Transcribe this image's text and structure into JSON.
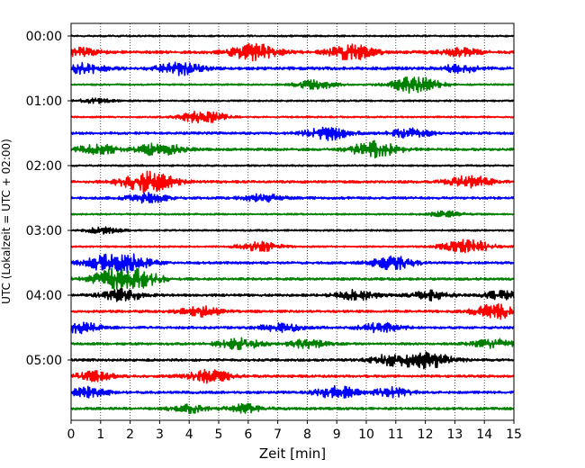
{
  "chart_data": {
    "type": "line",
    "title": "",
    "xlabel": "Zeit  [min]",
    "ylabel": "UTC (Lokalzeit = UTC + 02:00)",
    "xlim": [
      0,
      15
    ],
    "x_ticks": [
      "0",
      "1",
      "2",
      "3",
      "4",
      "5",
      "6",
      "7",
      "8",
      "9",
      "10",
      "11",
      "12",
      "13",
      "14",
      "15"
    ],
    "y_ticks": [
      "00:00",
      "01:00",
      "02:00",
      "03:00",
      "04:00",
      "05:00"
    ],
    "grid": "vertical dotted",
    "trace_interval_minutes": 15,
    "color_cycle": [
      "#000000",
      "#ff0000",
      "#0000ff",
      "#008000"
    ],
    "traces": [
      {
        "start": "00:00",
        "amplitude": 0.1,
        "events": []
      },
      {
        "start": "00:15",
        "amplitude": 0.18,
        "events": [
          {
            "at": 0.3,
            "amp": 0.45
          },
          {
            "at": 6.2,
            "amp": 0.95
          },
          {
            "at": 9.5,
            "amp": 0.85
          },
          {
            "at": 13.2,
            "amp": 0.45
          }
        ]
      },
      {
        "start": "00:30",
        "amplitude": 0.18,
        "events": [
          {
            "at": 0.5,
            "amp": 0.6
          },
          {
            "at": 3.7,
            "amp": 0.75
          },
          {
            "at": 13.2,
            "amp": 0.45
          }
        ]
      },
      {
        "start": "00:45",
        "amplitude": 0.1,
        "events": [
          {
            "at": 8.3,
            "amp": 0.55
          },
          {
            "at": 11.6,
            "amp": 1.05
          }
        ]
      },
      {
        "start": "01:00",
        "amplitude": 0.1,
        "events": [
          {
            "at": 0.8,
            "amp": 0.25
          }
        ]
      },
      {
        "start": "01:15",
        "amplitude": 0.1,
        "events": [
          {
            "at": 4.5,
            "amp": 0.8
          }
        ]
      },
      {
        "start": "01:30",
        "amplitude": 0.15,
        "events": [
          {
            "at": 8.7,
            "amp": 0.75
          },
          {
            "at": 11.5,
            "amp": 0.55
          }
        ]
      },
      {
        "start": "01:45",
        "amplitude": 0.15,
        "events": [
          {
            "at": 0.9,
            "amp": 0.6
          },
          {
            "at": 3.0,
            "amp": 0.8
          },
          {
            "at": 10.3,
            "amp": 0.95
          }
        ]
      },
      {
        "start": "02:00",
        "amplitude": 0.1,
        "events": []
      },
      {
        "start": "02:15",
        "amplitude": 0.15,
        "events": [
          {
            "at": 2.6,
            "amp": 1.25
          },
          {
            "at": 13.5,
            "amp": 0.75
          }
        ]
      },
      {
        "start": "02:30",
        "amplitude": 0.15,
        "events": [
          {
            "at": 2.6,
            "amp": 0.55
          },
          {
            "at": 6.5,
            "amp": 0.45
          }
        ]
      },
      {
        "start": "02:45",
        "amplitude": 0.1,
        "events": [
          {
            "at": 12.7,
            "amp": 0.35
          }
        ]
      },
      {
        "start": "03:00",
        "amplitude": 0.1,
        "events": [
          {
            "at": 1.1,
            "amp": 0.35
          }
        ]
      },
      {
        "start": "03:15",
        "amplitude": 0.1,
        "events": [
          {
            "at": 6.4,
            "amp": 0.6
          },
          {
            "at": 13.4,
            "amp": 0.9
          }
        ]
      },
      {
        "start": "03:30",
        "amplitude": 0.15,
        "events": [
          {
            "at": 1.3,
            "amp": 1.0
          },
          {
            "at": 2.2,
            "amp": 0.6
          },
          {
            "at": 10.9,
            "amp": 0.75
          }
        ]
      },
      {
        "start": "03:45",
        "amplitude": 0.15,
        "events": [
          {
            "at": 1.6,
            "amp": 1.25
          },
          {
            "at": 2.5,
            "amp": 0.55
          }
        ]
      },
      {
        "start": "04:00",
        "amplitude": 0.15,
        "events": [
          {
            "at": 1.7,
            "amp": 0.7
          },
          {
            "at": 9.7,
            "amp": 0.6
          },
          {
            "at": 12.2,
            "amp": 0.55
          },
          {
            "at": 14.6,
            "amp": 0.45
          }
        ]
      },
      {
        "start": "04:15",
        "amplitude": 0.15,
        "events": [
          {
            "at": 4.4,
            "amp": 0.6
          },
          {
            "at": 14.4,
            "amp": 0.85
          }
        ]
      },
      {
        "start": "04:30",
        "amplitude": 0.15,
        "events": [
          {
            "at": 0.3,
            "amp": 0.6
          },
          {
            "at": 7.1,
            "amp": 0.55
          },
          {
            "at": 10.5,
            "amp": 0.55
          }
        ]
      },
      {
        "start": "04:45",
        "amplitude": 0.15,
        "events": [
          {
            "at": 5.7,
            "amp": 0.65
          },
          {
            "at": 8.0,
            "amp": 0.55
          },
          {
            "at": 14.3,
            "amp": 0.55
          }
        ]
      },
      {
        "start": "05:00",
        "amplitude": 0.15,
        "events": [
          {
            "at": 10.9,
            "amp": 0.7
          },
          {
            "at": 12.1,
            "amp": 0.9
          }
        ]
      },
      {
        "start": "05:15",
        "amplitude": 0.15,
        "events": [
          {
            "at": 0.8,
            "amp": 0.55
          },
          {
            "at": 4.7,
            "amp": 0.75
          }
        ]
      },
      {
        "start": "05:30",
        "amplitude": 0.15,
        "events": [
          {
            "at": 0.6,
            "amp": 0.6
          },
          {
            "at": 9.0,
            "amp": 0.7
          },
          {
            "at": 10.9,
            "amp": 0.55
          }
        ]
      },
      {
        "start": "05:45",
        "amplitude": 0.15,
        "events": [
          {
            "at": 4.0,
            "amp": 0.45
          },
          {
            "at": 5.9,
            "amp": 0.5
          }
        ]
      }
    ]
  }
}
